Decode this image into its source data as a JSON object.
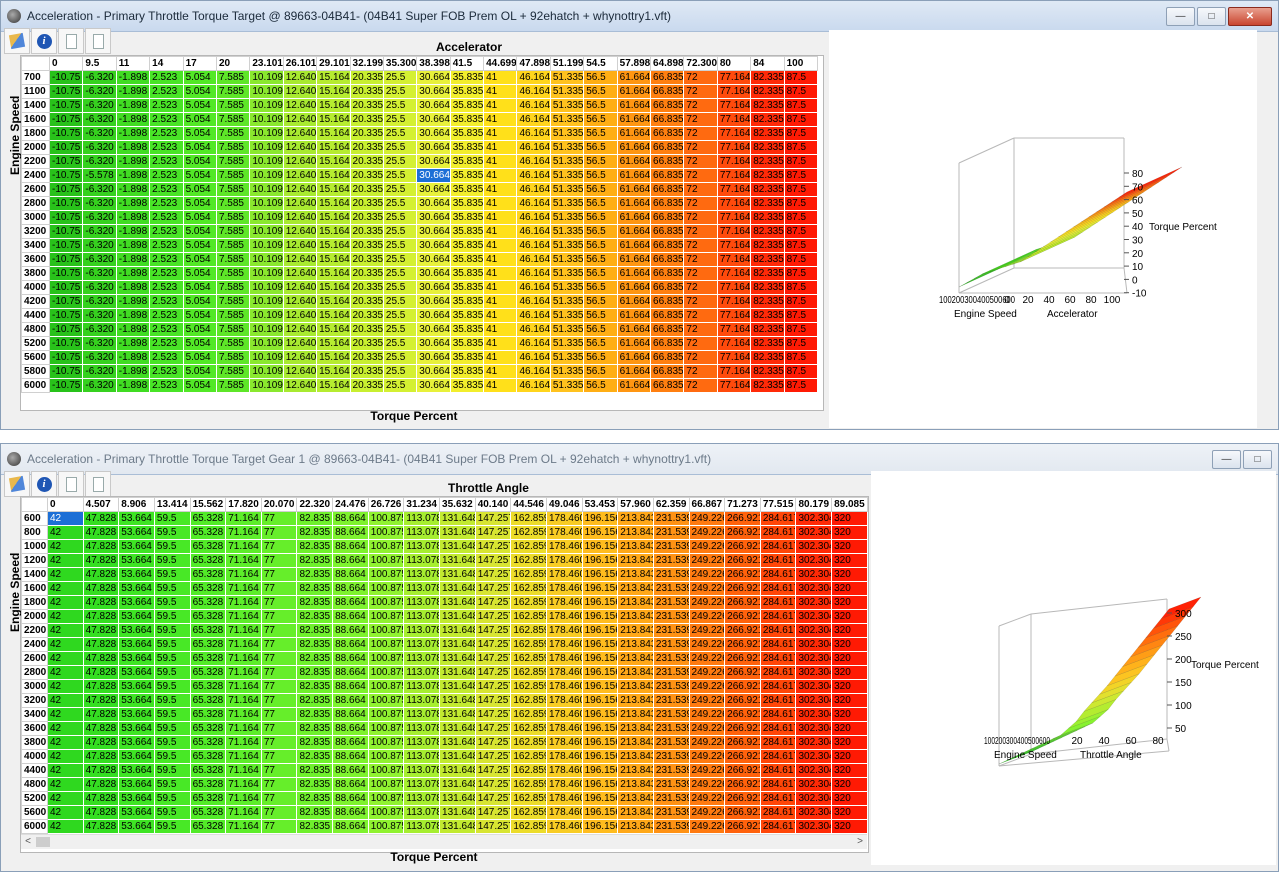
{
  "windows": [
    {
      "title": "Acceleration - Primary Throttle Torque Target @ 89663-04B41- (04B41 Super FOB Prem OL + 92ehatch + whynottry1.vft)",
      "active": true,
      "col_axis_title": "Accelerator",
      "row_axis_title": "Engine Speed",
      "bottom_title": "Torque Percent",
      "columns": [
        "0",
        "9.5",
        "11",
        "14",
        "17",
        "20",
        "23.101",
        "26.101",
        "29.101",
        "32.199",
        "35.300",
        "38.398",
        "41.5",
        "44.699",
        "47.898",
        "51.199",
        "54.5",
        "57.898",
        "64.898",
        "72.300",
        "80",
        "84",
        "100"
      ],
      "rows": [
        "700",
        "1100",
        "1400",
        "1600",
        "1800",
        "2000",
        "2200",
        "2400",
        "2600",
        "2800",
        "3000",
        "3200",
        "3400",
        "3600",
        "3800",
        "4000",
        "4200",
        "4400",
        "4800",
        "5200",
        "5600",
        "5800",
        "6000"
      ],
      "values": [
        "-10.75",
        "-6.320",
        "-1.898",
        "2.523",
        "5.054",
        "7.585",
        "10.109",
        "12.640",
        "15.164",
        "20.335",
        "25.5",
        "30.664",
        "35.835",
        "41",
        "46.164",
        "51.335",
        "56.5",
        "61.664",
        "66.835",
        "72",
        "77.164",
        "82.335",
        "87.5"
      ],
      "row_overrides": {
        "2400": {
          "1": "-5.578"
        }
      },
      "selected_cell": {
        "row": "2400",
        "col": 11
      },
      "colors": [
        "#28c21a",
        "#36d11f",
        "#40dc22",
        "#48e426",
        "#52e826",
        "#5ee628",
        "#8ae82e",
        "#a8ea30",
        "#b6ec30",
        "#c8ef30",
        "#d4f032",
        "#e8f13a",
        "#f2ee2c",
        "#ffe01a",
        "#ffd51c",
        "#ffc21e",
        "#ffae14",
        "#ff9612",
        "#ff7f10",
        "#ff6a10",
        "#ff4a0c",
        "#ff2a08",
        "#ff1a04"
      ],
      "plot": {
        "x_label": "Engine Speed",
        "x_ticks_text": "100200300400500600",
        "y_label": "Accelerator",
        "y_ticks": [
          "0",
          "20",
          "40",
          "60",
          "80",
          "100"
        ],
        "z_label": "Torque Percent",
        "z_ticks": [
          "80",
          "70",
          "60",
          "50",
          "40",
          "30",
          "20",
          "10",
          "0",
          "-10"
        ]
      }
    },
    {
      "title": "Acceleration - Primary Throttle Torque Target Gear 1 @ 89663-04B41- (04B41 Super FOB Prem OL + 92ehatch + whynottry1.vft)",
      "active": false,
      "col_axis_title": "Throttle Angle",
      "row_axis_title": "Engine Speed",
      "bottom_title": "Torque Percent",
      "columns": [
        "0",
        "4.507",
        "8.906",
        "13.414",
        "15.562",
        "17.820",
        "20.070",
        "22.320",
        "24.476",
        "26.726",
        "31.234",
        "35.632",
        "40.140",
        "44.546",
        "49.046",
        "53.453",
        "57.960",
        "62.359",
        "66.867",
        "71.273",
        "77.515",
        "80.179",
        "89.085"
      ],
      "rows": [
        "600",
        "800",
        "1000",
        "1200",
        "1400",
        "1600",
        "1800",
        "2000",
        "2200",
        "2400",
        "2600",
        "2800",
        "3000",
        "3200",
        "3400",
        "3600",
        "3800",
        "4000",
        "4400",
        "4800",
        "5200",
        "5600",
        "6000"
      ],
      "values": [
        "42",
        "47.828",
        "53.664",
        "59.5",
        "65.328",
        "71.164",
        "77",
        "82.835",
        "88.664",
        "100.875",
        "113.078",
        "131.648",
        "147.257",
        "162.859",
        "178.460",
        "196.156",
        "213.843",
        "231.539",
        "249.226",
        "266.921",
        "284.617",
        "302.304",
        "320"
      ],
      "row_overrides": {},
      "selected_cell": {
        "row": "600",
        "col": 0
      },
      "colors": [
        "#2fd81f",
        "#34de21",
        "#3ee424",
        "#48e826",
        "#52ea28",
        "#5ded2a",
        "#66ee2a",
        "#6ff02c",
        "#7ef22e",
        "#90f230",
        "#a6ee30",
        "#c2ea30",
        "#d8e532",
        "#ecdc2a",
        "#f8cc24",
        "#ffbc1e",
        "#ffa818",
        "#ff9214",
        "#ff7a10",
        "#ff620c",
        "#ff4608",
        "#ff2a06",
        "#ff1a04"
      ],
      "plot": {
        "x_label": "Engine Speed",
        "x_ticks_text": "100200300400500600",
        "y_label": "Throttle Angle",
        "y_ticks": [
          "20",
          "40",
          "60",
          "80"
        ],
        "z_label": "Torque Percent",
        "z_ticks": [
          "300",
          "250",
          "200",
          "150",
          "100",
          "50"
        ]
      }
    }
  ],
  "window_controls": {
    "minimize": "—",
    "maximize": "□",
    "close": "✕"
  },
  "scroll": {
    "left": "<",
    "right": ">"
  }
}
